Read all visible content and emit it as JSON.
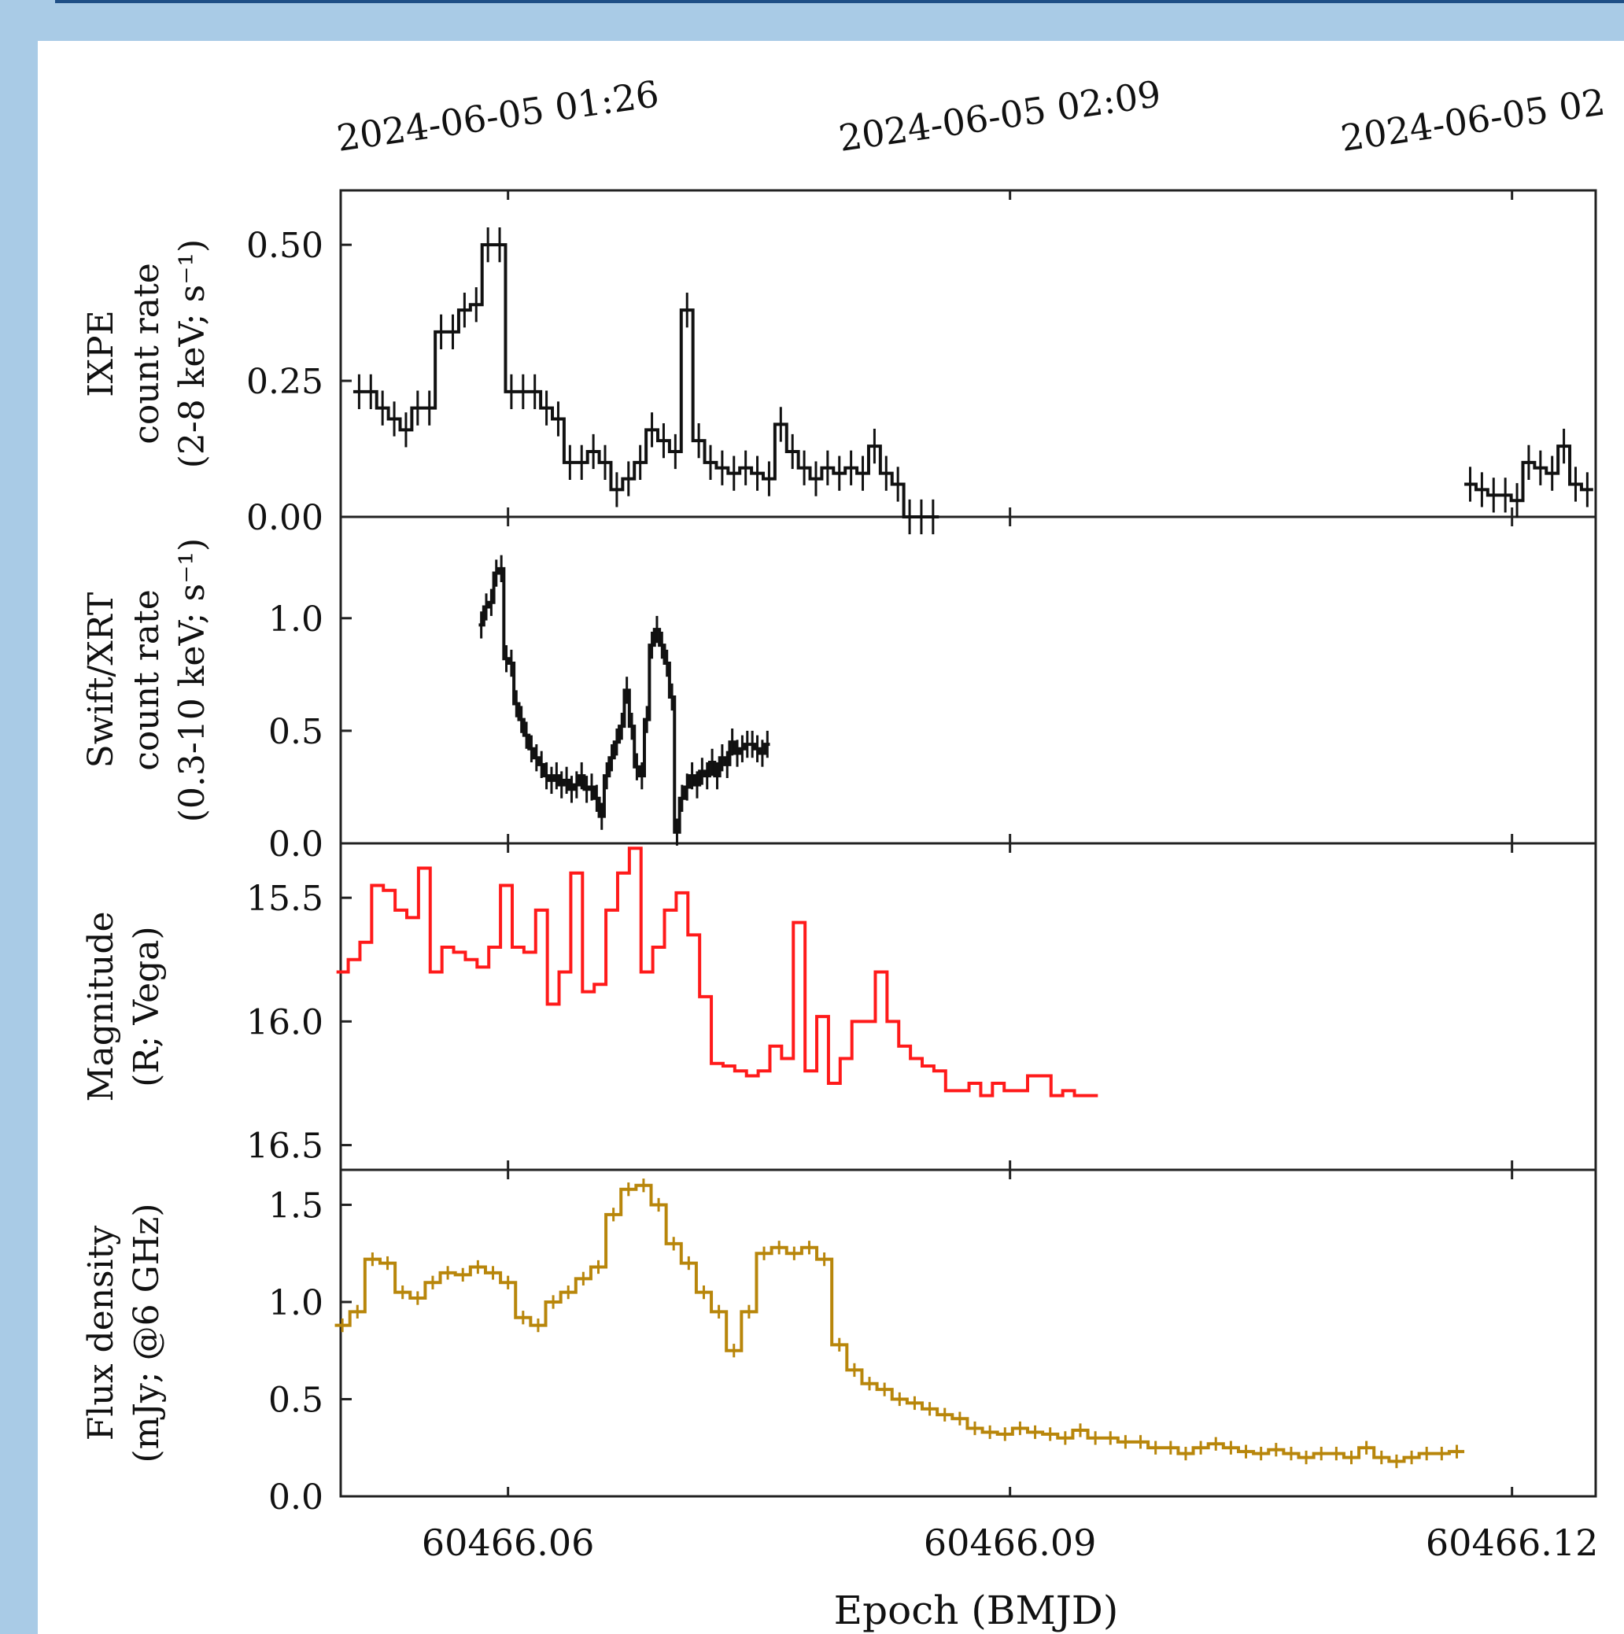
{
  "colors": {
    "ixpe": "#111111",
    "xrt": "#111111",
    "optical": "#ff1a1a",
    "radio": "#b8860b",
    "frame": "#1f4f86",
    "background": "#a9cbe6"
  },
  "chart_data": {
    "type": "line",
    "title": "",
    "xlabel": "Epoch (BMJD)",
    "xlim": [
      60466.05,
      60466.125
    ],
    "x_ticks": [
      60466.06,
      60466.09,
      60466.12
    ],
    "x_tick_labels": [
      "60466.06",
      "60466.09",
      "60466.12"
    ],
    "top_axis_tick_labels": [
      "2024-06-05 01:26",
      "2024-06-05 02:09",
      "2024-06-05 02"
    ],
    "panels": [
      {
        "name": "IXPE",
        "ylabel_lines": [
          "IXPE",
          "count rate",
          "(2-8 keV; s⁻¹)"
        ],
        "ylim": [
          0,
          0.6
        ],
        "y_ticks": [
          0.0,
          0.25,
          0.5
        ],
        "y_tick_labels": [
          "0.00",
          "0.25",
          "0.50"
        ],
        "style": "step-errorbar",
        "color": "#111111",
        "x": [
          60466.0511,
          60466.0518,
          60466.0525,
          60466.0532,
          60466.0539,
          60466.0546,
          60466.0553,
          60466.056,
          60466.0567,
          60466.0574,
          60466.0581,
          60466.0588,
          60466.0595,
          60466.0602,
          60466.0609,
          60466.0616,
          60466.0623,
          60466.063,
          60466.0637,
          60466.0644,
          60466.0651,
          60466.0658,
          60466.0665,
          60466.0672,
          60466.0679,
          60466.0686,
          60466.0693,
          60466.07,
          60466.0707,
          60466.0714,
          60466.0721,
          60466.0728,
          60466.0735,
          60466.0742,
          60466.0749,
          60466.0756,
          60466.0763,
          60466.077,
          60466.0777,
          60466.0784,
          60466.0791,
          60466.0798,
          60466.0805,
          60466.0812,
          60466.0819,
          60466.0826,
          60466.0833,
          60466.084,
          60466.0847,
          60466.0854,
          60466.1175,
          60466.1182,
          60466.1189,
          60466.1196,
          60466.1203,
          60466.121,
          60466.1217,
          60466.1224,
          60466.1231,
          60466.1238,
          60466.1245
        ],
        "y": [
          0.23,
          0.23,
          0.2,
          0.18,
          0.16,
          0.2,
          0.2,
          0.34,
          0.34,
          0.38,
          0.39,
          0.5,
          0.5,
          0.23,
          0.23,
          0.23,
          0.2,
          0.18,
          0.1,
          0.1,
          0.12,
          0.1,
          0.05,
          0.07,
          0.1,
          0.16,
          0.14,
          0.12,
          0.38,
          0.14,
          0.1,
          0.09,
          0.08,
          0.09,
          0.08,
          0.07,
          0.17,
          0.12,
          0.09,
          0.07,
          0.09,
          0.08,
          0.09,
          0.08,
          0.13,
          0.08,
          0.06,
          0.0,
          0.0,
          0.0,
          0.06,
          0.05,
          0.04,
          0.04,
          0.03,
          0.1,
          0.09,
          0.08,
          0.13,
          0.06,
          0.05
        ],
        "yerr": 0.032
      },
      {
        "name": "Swift/XRT",
        "ylabel_lines": [
          "Swift/XRT",
          "count rate",
          "(0.3-10 keV; s⁻¹)"
        ],
        "ylim": [
          0,
          1.45
        ],
        "y_ticks": [
          0.0,
          0.5,
          1.0
        ],
        "y_tick_labels": [
          "0.0",
          "0.5",
          "1.0"
        ],
        "style": "step-errorbar",
        "color": "#111111",
        "x": [
          60466.0584,
          60466.0587,
          60466.059,
          60466.0593,
          60466.0596,
          60466.0599,
          60466.0602,
          60466.0605,
          60466.0608,
          60466.0611,
          60466.0614,
          60466.0617,
          60466.062,
          60466.0623,
          60466.0626,
          60466.0629,
          60466.0632,
          60466.0635,
          60466.0638,
          60466.0641,
          60466.0644,
          60466.0647,
          60466.065,
          60466.0653,
          60466.0656,
          60466.0659,
          60466.0662,
          60466.0665,
          60466.0668,
          60466.0671,
          60466.0674,
          60466.0677,
          60466.068,
          60466.0683,
          60466.0686,
          60466.0689,
          60466.0692,
          60466.0695,
          60466.0698,
          60466.0701,
          60466.0704,
          60466.0707,
          60466.071,
          60466.0713,
          60466.0716,
          60466.0719,
          60466.0722,
          60466.0725,
          60466.0728,
          60466.0731,
          60466.0734,
          60466.0737,
          60466.074,
          60466.0743,
          60466.0746,
          60466.0749,
          60466.0752,
          60466.0755
        ],
        "y": [
          0.97,
          1.05,
          1.07,
          1.2,
          1.22,
          0.82,
          0.8,
          0.62,
          0.55,
          0.48,
          0.42,
          0.38,
          0.35,
          0.3,
          0.28,
          0.3,
          0.26,
          0.28,
          0.24,
          0.26,
          0.3,
          0.24,
          0.25,
          0.2,
          0.12,
          0.3,
          0.38,
          0.45,
          0.52,
          0.68,
          0.52,
          0.34,
          0.3,
          0.55,
          0.88,
          0.95,
          0.88,
          0.8,
          0.65,
          0.05,
          0.2,
          0.25,
          0.3,
          0.26,
          0.32,
          0.3,
          0.36,
          0.3,
          0.38,
          0.35,
          0.45,
          0.4,
          0.42,
          0.44,
          0.44,
          0.42,
          0.4,
          0.44
        ],
        "yerr": 0.06
      },
      {
        "name": "Optical",
        "ylabel_lines": [
          "Magnitude",
          "(R; Vega)"
        ],
        "ylim": [
          16.6,
          15.28
        ],
        "inverted": true,
        "y_ticks": [
          15.5,
          16.0,
          16.5
        ],
        "y_tick_labels": [
          "15.5",
          "16.0",
          "16.5"
        ],
        "style": "step",
        "color": "#ff1a1a",
        "x": [
          60466.0501,
          60466.0508,
          60466.0515,
          60466.0522,
          60466.0529,
          60466.0536,
          60466.0543,
          60466.055,
          60466.0557,
          60466.0564,
          60466.0571,
          60466.0578,
          60466.0585,
          60466.0592,
          60466.0599,
          60466.0606,
          60466.0613,
          60466.062,
          60466.0627,
          60466.0634,
          60466.0641,
          60466.0648,
          60466.0655,
          60466.0662,
          60466.0669,
          60466.0676,
          60466.0683,
          60466.069,
          60466.0697,
          60466.0704,
          60466.0711,
          60466.0718,
          60466.0725,
          60466.0732,
          60466.0739,
          60466.0746,
          60466.0753,
          60466.076,
          60466.0767,
          60466.0774,
          60466.0781,
          60466.0788,
          60466.0795,
          60466.0802,
          60466.0809,
          60466.0816,
          60466.0823,
          60466.083,
          60466.0837,
          60466.0844,
          60466.0851,
          60466.0858,
          60466.0865,
          60466.0872,
          60466.0879,
          60466.0886,
          60466.0893,
          60466.09,
          60466.0907,
          60466.0914,
          60466.0921,
          60466.0928,
          60466.0935,
          60466.0942,
          60466.0949
        ],
        "y": [
          15.8,
          15.75,
          15.68,
          15.45,
          15.47,
          15.55,
          15.58,
          15.38,
          15.8,
          15.7,
          15.72,
          15.75,
          15.78,
          15.7,
          15.45,
          15.7,
          15.72,
          15.55,
          15.93,
          15.8,
          15.4,
          15.88,
          15.85,
          15.55,
          15.4,
          15.3,
          15.8,
          15.7,
          15.55,
          15.48,
          15.65,
          15.9,
          16.17,
          16.18,
          16.2,
          16.22,
          16.2,
          16.1,
          16.15,
          15.6,
          16.2,
          15.98,
          16.25,
          16.15,
          16.0,
          16.0,
          15.8,
          16.0,
          16.1,
          16.15,
          16.18,
          16.2,
          16.28,
          16.28,
          16.25,
          16.3,
          16.25,
          16.28,
          16.28,
          16.22,
          16.22,
          16.3,
          16.28,
          16.3,
          16.3
        ],
        "yerr": 0
      },
      {
        "name": "Radio",
        "ylabel_lines": [
          "Flux density",
          "(mJy; @6 GHz)"
        ],
        "ylim": [
          0,
          1.68
        ],
        "y_ticks": [
          0.0,
          0.5,
          1.0,
          1.5
        ],
        "y_tick_labels": [
          "0.0",
          "0.5",
          "1.0",
          "1.5"
        ],
        "style": "step-errorbar",
        "color": "#b8860b",
        "x": [
          60466.0501,
          60466.051,
          60466.0519,
          60466.0528,
          60466.0537,
          60466.0546,
          60466.0555,
          60466.0564,
          60466.0573,
          60466.0582,
          60466.0591,
          60466.06,
          60466.0609,
          60466.0618,
          60466.0627,
          60466.0636,
          60466.0645,
          60466.0654,
          60466.0663,
          60466.0672,
          60466.0681,
          60466.069,
          60466.0699,
          60466.0708,
          60466.0717,
          60466.0726,
          60466.0735,
          60466.0744,
          60466.0753,
          60466.0762,
          60466.0771,
          60466.078,
          60466.0789,
          60466.0798,
          60466.0807,
          60466.0816,
          60466.0825,
          60466.0834,
          60466.0843,
          60466.0852,
          60466.0861,
          60466.087,
          60466.0879,
          60466.0888,
          60466.0897,
          60466.0906,
          60466.0915,
          60466.0924,
          60466.0933,
          60466.0942,
          60466.0951,
          60466.096,
          60466.0969,
          60466.0978,
          60466.0987,
          60466.0996,
          60466.1005,
          60466.1014,
          60466.1023,
          60466.1032,
          60466.1041,
          60466.105,
          60466.1059,
          60466.1068,
          60466.1077,
          60466.1086,
          60466.1095,
          60466.1104,
          60466.1113,
          60466.1122,
          60466.1131,
          60466.114,
          60466.1149,
          60466.1158,
          60466.1167
        ],
        "y": [
          0.88,
          0.95,
          1.22,
          1.2,
          1.05,
          1.02,
          1.1,
          1.15,
          1.14,
          1.18,
          1.15,
          1.1,
          0.92,
          0.88,
          1.0,
          1.05,
          1.12,
          1.18,
          1.45,
          1.58,
          1.6,
          1.5,
          1.3,
          1.2,
          1.05,
          0.95,
          0.75,
          0.95,
          1.25,
          1.28,
          1.25,
          1.28,
          1.22,
          0.78,
          0.65,
          0.58,
          0.55,
          0.5,
          0.48,
          0.45,
          0.42,
          0.4,
          0.35,
          0.33,
          0.32,
          0.35,
          0.33,
          0.32,
          0.3,
          0.34,
          0.3,
          0.3,
          0.28,
          0.28,
          0.25,
          0.25,
          0.22,
          0.25,
          0.27,
          0.25,
          0.23,
          0.22,
          0.24,
          0.22,
          0.2,
          0.22,
          0.22,
          0.2,
          0.25,
          0.2,
          0.18,
          0.2,
          0.22,
          0.22,
          0.23
        ],
        "yerr": 0.035
      }
    ]
  }
}
